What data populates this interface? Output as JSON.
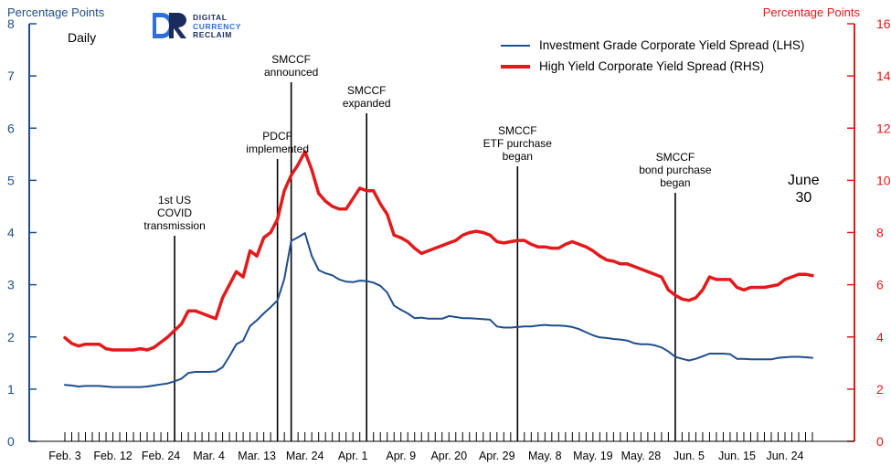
{
  "axes": {
    "left_title": "Percentage Points",
    "right_title": "Percentage Points",
    "left_color": "#1f4e8c",
    "right_color": "#e31a1c",
    "left_ticks": [
      "0",
      "1",
      "2",
      "3",
      "4",
      "5",
      "6",
      "7",
      "8"
    ],
    "right_ticks": [
      "0",
      "2",
      "4",
      "6",
      "8",
      "10",
      "12",
      "14",
      "16"
    ]
  },
  "frequency_label": "Daily",
  "logo": {
    "line1": "DIGITAL",
    "line2": "CURRENCY",
    "line3": "RECLAIM"
  },
  "end_label": {
    "line1": "June",
    "line2": "30"
  },
  "chart_data": {
    "type": "line",
    "x_tick_labels": [
      "Feb. 3",
      "Feb. 12",
      "Feb. 24",
      "Mar. 4",
      "Mar. 13",
      "Mar. 24",
      "Apr. 1",
      "Apr. 9",
      "Apr. 20",
      "Apr. 29",
      "May. 8",
      "May. 19",
      "May. 28",
      "Jun. 5",
      "Jun. 15",
      "Jun. 24"
    ],
    "x_tick_index": [
      0,
      7,
      14,
      21,
      28,
      35,
      42,
      49,
      56,
      63,
      70,
      77,
      84,
      91,
      98,
      105
    ],
    "n_days": 110,
    "ylim_left": [
      0,
      8
    ],
    "ylim_right": [
      0,
      16
    ],
    "legend_position": "top-right",
    "series": [
      {
        "name": "Investment Grade Corporate Yield Spread (LHS)",
        "axis": "left",
        "color": "#1f4e8c",
        "values": [
          1.08,
          1.07,
          1.05,
          1.06,
          1.06,
          1.06,
          1.05,
          1.04,
          1.04,
          1.04,
          1.04,
          1.04,
          1.05,
          1.07,
          1.09,
          1.11,
          1.15,
          1.2,
          1.31,
          1.33,
          1.33,
          1.33,
          1.34,
          1.42,
          1.63,
          1.86,
          1.93,
          2.21,
          2.32,
          2.45,
          2.57,
          2.7,
          3.11,
          3.84,
          3.91,
          3.99,
          3.55,
          3.28,
          3.22,
          3.18,
          3.1,
          3.06,
          3.05,
          3.08,
          3.07,
          3.04,
          2.98,
          2.85,
          2.6,
          2.52,
          2.45,
          2.36,
          2.37,
          2.35,
          2.35,
          2.35,
          2.4,
          2.38,
          2.36,
          2.36,
          2.35,
          2.34,
          2.33,
          2.2,
          2.18,
          2.18,
          2.19,
          2.2,
          2.2,
          2.22,
          2.23,
          2.22,
          2.22,
          2.21,
          2.19,
          2.15,
          2.09,
          2.03,
          1.99,
          1.98,
          1.96,
          1.95,
          1.93,
          1.88,
          1.86,
          1.86,
          1.84,
          1.8,
          1.72,
          1.62,
          1.58,
          1.55,
          1.58,
          1.63,
          1.68,
          1.68,
          1.68,
          1.67,
          1.58,
          1.58,
          1.57,
          1.57,
          1.57,
          1.57,
          1.6,
          1.61,
          1.62,
          1.62,
          1.61,
          1.6
        ]
      },
      {
        "name": "High Yield Corporate Yield Spread (RHS)",
        "axis": "right",
        "color": "#e31a1c",
        "values": [
          3.97,
          3.75,
          3.65,
          3.72,
          3.72,
          3.72,
          3.55,
          3.5,
          3.5,
          3.5,
          3.5,
          3.55,
          3.5,
          3.6,
          3.8,
          4.0,
          4.25,
          4.5,
          5.0,
          5.0,
          4.9,
          4.8,
          4.7,
          5.5,
          6.0,
          6.5,
          6.3,
          7.3,
          7.1,
          7.8,
          8.0,
          8.5,
          9.6,
          10.2,
          10.6,
          11.1,
          10.4,
          9.5,
          9.2,
          9.0,
          8.9,
          8.9,
          9.3,
          9.7,
          9.6,
          9.6,
          9.1,
          8.7,
          7.9,
          7.8,
          7.65,
          7.4,
          7.2,
          7.3,
          7.4,
          7.5,
          7.6,
          7.7,
          7.9,
          8.0,
          8.05,
          8.0,
          7.9,
          7.65,
          7.6,
          7.65,
          7.7,
          7.7,
          7.55,
          7.45,
          7.45,
          7.4,
          7.4,
          7.55,
          7.65,
          7.55,
          7.45,
          7.3,
          7.1,
          6.95,
          6.9,
          6.8,
          6.8,
          6.7,
          6.6,
          6.5,
          6.4,
          6.3,
          5.8,
          5.6,
          5.45,
          5.4,
          5.5,
          5.8,
          6.3,
          6.2,
          6.2,
          6.2,
          5.9,
          5.8,
          5.9,
          5.9,
          5.9,
          5.95,
          6.0,
          6.2,
          6.3,
          6.4,
          6.4,
          6.35
        ]
      }
    ],
    "events": [
      {
        "day": 16,
        "label": [
          "1st US",
          "COVID",
          "transmission"
        ]
      },
      {
        "day": 31,
        "label": [
          "PDCF",
          "implemented"
        ]
      },
      {
        "day": 33,
        "label": [
          "SMCCF",
          "announced"
        ]
      },
      {
        "day": 44,
        "label": [
          "SMCCF",
          "expanded"
        ]
      },
      {
        "day": 66,
        "label": [
          "SMCCF",
          "ETF purchase",
          "began"
        ]
      },
      {
        "day": 89,
        "label": [
          "SMCCF",
          "bond purchase",
          "began"
        ]
      }
    ]
  }
}
